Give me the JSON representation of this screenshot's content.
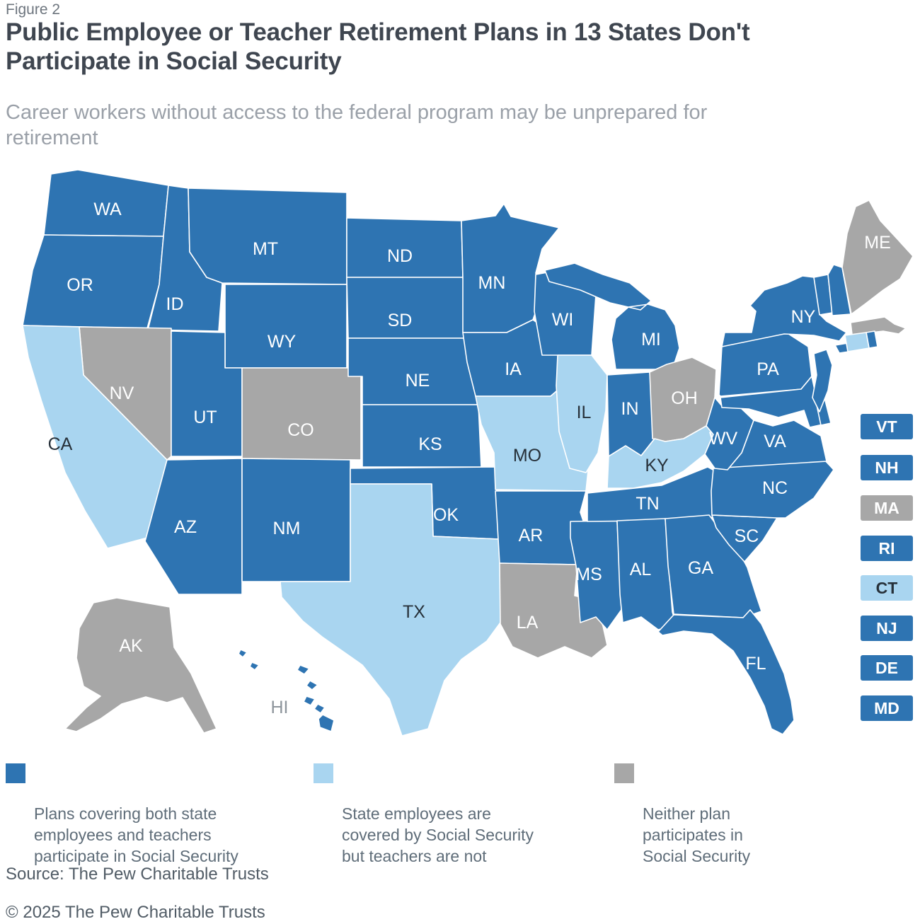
{
  "figure_label": "Figure 2",
  "title": "Public Employee or Teacher Retirement Plans in 13 States Don't\nParticipate in Social Security",
  "subtitle": "Career workers without access to the federal program may be unprepared for\nretirement",
  "source_line": "Source: The Pew Charitable Trusts",
  "copyright_line": "© 2025 The Pew Charitable Trusts",
  "text_colors": {
    "on_dark": "#ffffff",
    "on_light": "#27313a",
    "hawaii_label": "#8d959c"
  },
  "categories": {
    "both": {
      "label": "Plans covering both state\nemployees and teachers\nparticipate in Social Security",
      "color": "#2e74b2"
    },
    "state_only": {
      "label": "State employees are\ncovered by Social Security\nbut teachers are not",
      "color": "#a9d5f0"
    },
    "neither": {
      "label": "Neither plan\nparticipates in\nSocial Security",
      "color": "#a7a7a7"
    }
  },
  "map_data": {
    "type": "choropleth",
    "region": "United States",
    "states": {
      "WA": "both",
      "OR": "both",
      "CA": "state_only",
      "NV": "neither",
      "ID": "both",
      "MT": "both",
      "WY": "both",
      "UT": "both",
      "CO": "neither",
      "AZ": "both",
      "NM": "both",
      "ND": "both",
      "SD": "both",
      "NE": "both",
      "KS": "both",
      "OK": "both",
      "TX": "state_only",
      "MN": "both",
      "IA": "both",
      "MO": "state_only",
      "AR": "both",
      "LA": "neither",
      "WI": "both",
      "IL": "state_only",
      "MS": "both",
      "MI": "both",
      "IN": "both",
      "OH": "neither",
      "KY": "state_only",
      "TN": "both",
      "AL": "both",
      "GA": "both",
      "FL": "both",
      "WV": "both",
      "VA": "both",
      "NC": "both",
      "SC": "both",
      "PA": "both",
      "NY": "both",
      "VT": "both",
      "NH": "both",
      "ME": "neither",
      "MA": "neither",
      "RI": "both",
      "CT": "state_only",
      "NJ": "both",
      "DE": "both",
      "MD": "both",
      "AK": "neither",
      "HI": "both"
    },
    "small_state_boxes": [
      "VT",
      "NH",
      "MA",
      "RI",
      "CT",
      "NJ",
      "DE",
      "MD"
    ]
  }
}
